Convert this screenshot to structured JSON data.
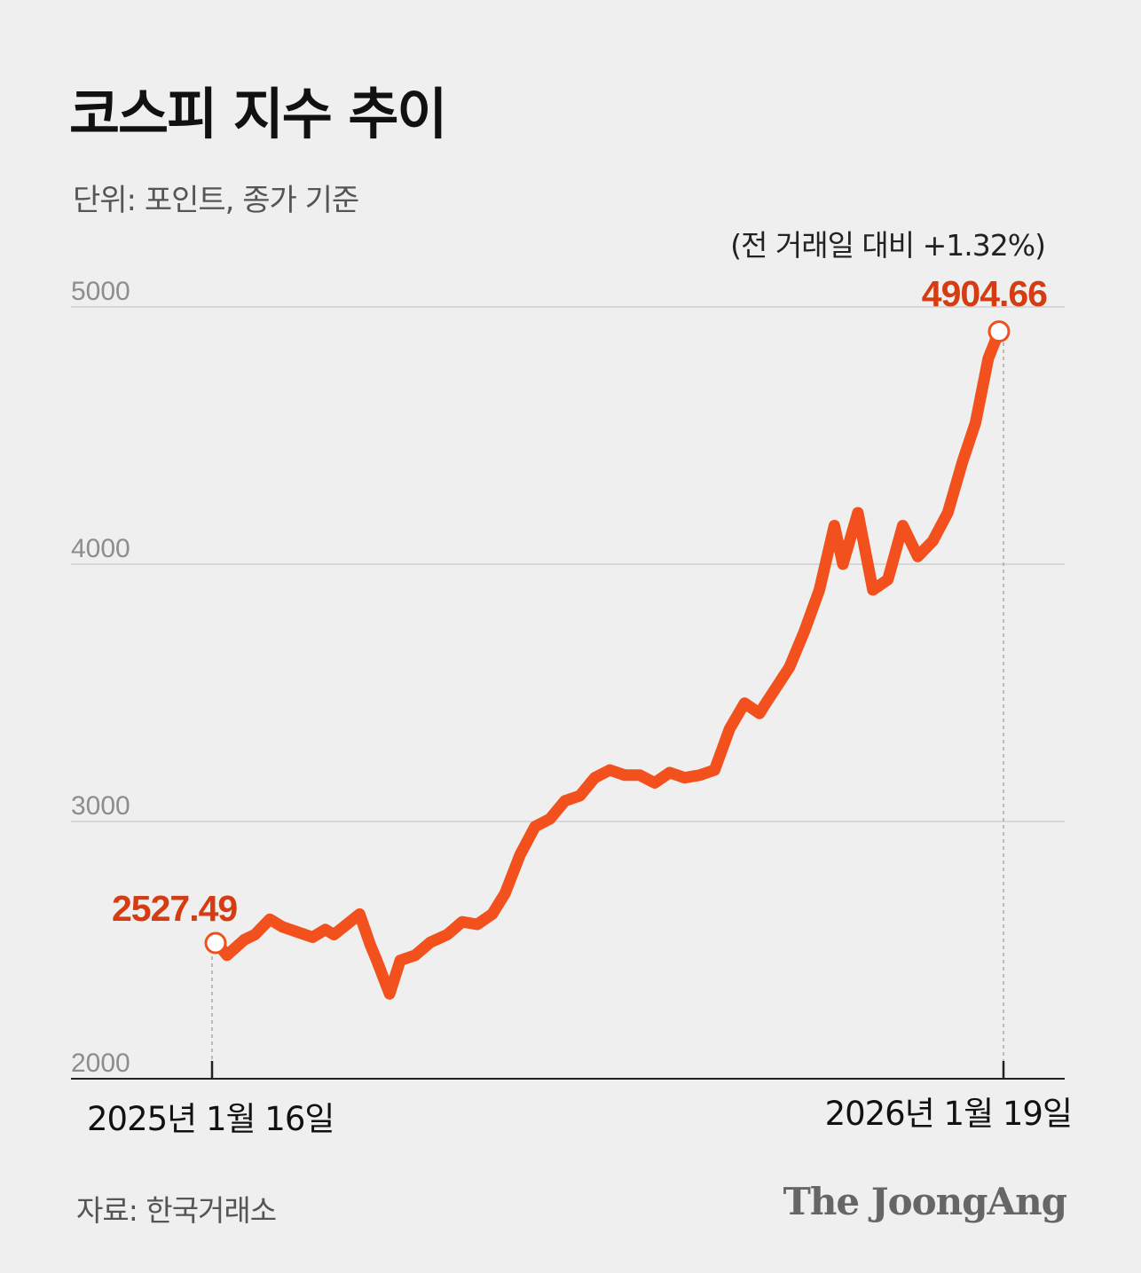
{
  "header": {
    "title": "코스피 지수 추이",
    "unit": "단위: 포인트, 종가 기준"
  },
  "annotations": {
    "change": "(전 거래일 대비 +1.32%)"
  },
  "footer": {
    "source": "자료: 한국거래소",
    "logo": "The JoongAng"
  },
  "colors": {
    "line": "#f2501d",
    "label": "#d63c12",
    "grid": "#cfcfcf",
    "background": "#efefef"
  },
  "chart_data": {
    "type": "line",
    "title": "코스피 지수 추이",
    "ylim": [
      2000,
      5000
    ],
    "yticks": [
      "5000",
      "4000",
      "3000",
      "2000"
    ],
    "x_labels": [
      "2025년 1월 16일",
      "2026년 1월 19일"
    ],
    "start_label": "2527.49",
    "end_label": "4904.66",
    "grid": true,
    "series": [
      {
        "x": [
          "2025-01-16",
          "2025-01-20",
          "2025-01-23",
          "2025-01-31",
          "2025-02-05",
          "2025-02-12",
          "2025-02-18",
          "2025-02-25",
          "2025-03-04",
          "2025-03-10",
          "2025-03-14",
          "2025-03-20",
          "2025-03-26",
          "2025-03-31",
          "2025-04-03",
          "2025-04-09",
          "2025-04-14",
          "2025-04-21",
          "2025-04-28",
          "2025-05-06",
          "2025-05-13",
          "2025-05-20",
          "2025-05-27",
          "2025-06-02",
          "2025-06-09",
          "2025-06-16",
          "2025-06-23",
          "2025-06-30",
          "2025-07-07",
          "2025-07-14",
          "2025-07-21",
          "2025-07-28",
          "2025-08-04",
          "2025-08-11",
          "2025-08-18",
          "2025-08-25",
          "2025-09-01",
          "2025-09-08",
          "2025-09-15",
          "2025-09-22",
          "2025-09-29",
          "2025-10-02",
          "2025-10-13",
          "2025-10-20",
          "2025-10-27",
          "2025-11-03",
          "2025-11-07",
          "2025-11-14",
          "2025-11-21",
          "2025-11-28",
          "2025-12-05",
          "2025-12-12",
          "2025-12-19",
          "2025-12-26",
          "2026-01-02",
          "2026-01-08",
          "2026-01-14",
          "2026-01-19"
        ],
        "values": [
          2527.49,
          2510,
          2480,
          2540,
          2560,
          2620,
          2590,
          2570,
          2550,
          2580,
          2560,
          2600,
          2640,
          2520,
          2460,
          2330,
          2460,
          2480,
          2530,
          2560,
          2610,
          2600,
          2640,
          2720,
          2870,
          2980,
          3010,
          3080,
          3100,
          3170,
          3200,
          3180,
          3180,
          3150,
          3190,
          3170,
          3180,
          3200,
          3360,
          3460,
          3420,
          3460,
          3600,
          3740,
          3900,
          4150,
          4000,
          4200,
          3900,
          3940,
          4150,
          4030,
          4090,
          4200,
          4400,
          4550,
          4800,
          4904.66
        ]
      }
    ]
  }
}
